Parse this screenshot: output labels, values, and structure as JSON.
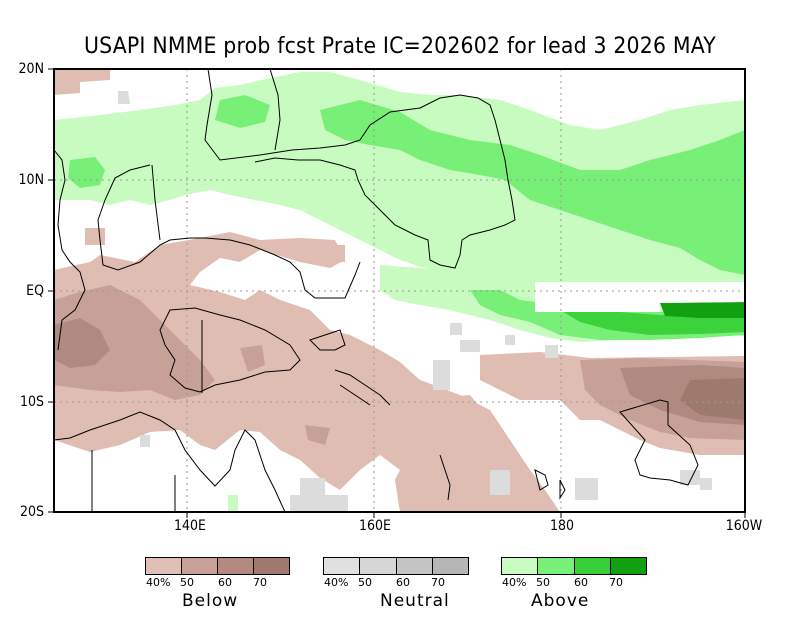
{
  "title": "USAPI NMME prob fcst Prate IC=202602 for lead 3 2026 MAY",
  "axes": {
    "lat_labels": [
      "20N",
      "10N",
      "EQ",
      "10S",
      "20S"
    ],
    "lon_labels": [
      "140E",
      "160E",
      "180",
      "160W"
    ],
    "lat_range": [
      -20,
      20
    ],
    "lon_range": [
      125,
      200
    ]
  },
  "legend": {
    "groups": [
      {
        "name": "Below",
        "ticks": [
          "40%",
          "50",
          "60",
          "70"
        ],
        "colors": [
          "#e0c0b6",
          "#c8a097",
          "#b48a80",
          "#a0786e"
        ]
      },
      {
        "name": "Neutral",
        "ticks": [
          "40%",
          "50",
          "60",
          "70"
        ],
        "colors": [
          "#e0e0e0",
          "#d6d6d6",
          "#c4c4c4",
          "#b6b6b6"
        ]
      },
      {
        "name": "Above",
        "ticks": [
          "40%",
          "50",
          "60",
          "70"
        ],
        "colors": [
          "#c8fcc0",
          "#78f078",
          "#38d038",
          "#10a010"
        ]
      }
    ]
  },
  "colors": {
    "below1": "#dfbdb3",
    "below2": "#c7a097",
    "below3": "#b08a80",
    "below4": "#9e7a6e",
    "neutral1": "#dcdcdc",
    "above1": "#c8fbc0",
    "above2": "#78f078",
    "above3": "#3cd23c",
    "above4": "#12a012"
  }
}
